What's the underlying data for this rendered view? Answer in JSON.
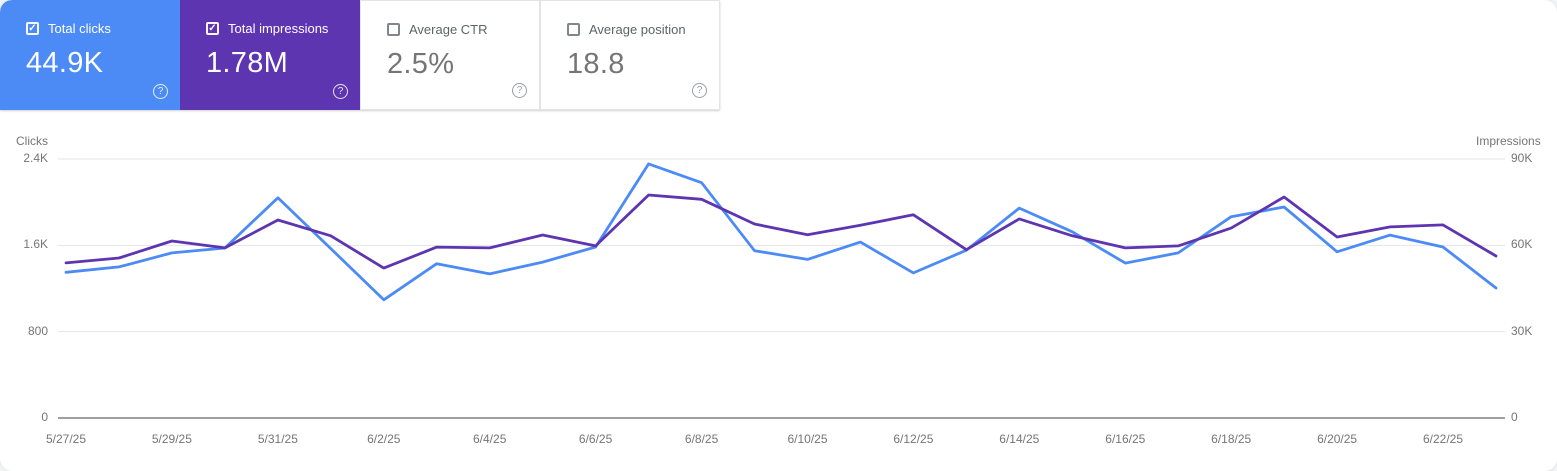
{
  "icons": {
    "help": "?",
    "checkmark": "✓"
  },
  "cards": [
    {
      "label": "Total clicks",
      "value": "44.9K",
      "checked": true,
      "bg": "#4c8bf5"
    },
    {
      "label": "Total impressions",
      "value": "1.78M",
      "checked": true,
      "bg": "#5e35b1"
    },
    {
      "label": "Average CTR",
      "value": "2.5%",
      "checked": false,
      "bg": "#ffffff"
    },
    {
      "label": "Average position",
      "value": "18.8",
      "checked": false,
      "bg": "#ffffff"
    }
  ],
  "chart_data": {
    "type": "line",
    "x": [
      "5/27/25",
      "5/28/25",
      "5/29/25",
      "5/30/25",
      "5/31/25",
      "6/1/25",
      "6/2/25",
      "6/3/25",
      "6/4/25",
      "6/5/25",
      "6/6/25",
      "6/7/25",
      "6/8/25",
      "6/9/25",
      "6/10/25",
      "6/11/25",
      "6/12/25",
      "6/13/25",
      "6/14/25",
      "6/15/25",
      "6/16/25",
      "6/17/25",
      "6/18/25",
      "6/19/25",
      "6/20/25",
      "6/21/25",
      "6/22/25",
      "6/23/25"
    ],
    "x_tick_labels": [
      "5/27/25",
      "5/29/25",
      "5/31/25",
      "6/2/25",
      "6/4/25",
      "6/6/25",
      "6/8/25",
      "6/10/25",
      "6/12/25",
      "6/14/25",
      "6/16/25",
      "6/18/25",
      "6/20/25",
      "6/22/25"
    ],
    "series": [
      {
        "name": "Total clicks",
        "axis": "left",
        "color": "#4c8bf5",
        "values": [
          1350,
          1400,
          1530,
          1575,
          2040,
          1570,
          1095,
          1430,
          1335,
          1445,
          1585,
          2355,
          2180,
          1550,
          1470,
          1630,
          1345,
          1555,
          1945,
          1725,
          1435,
          1530,
          1865,
          1955,
          1540,
          1695,
          1585,
          1205
        ]
      },
      {
        "name": "Total impressions",
        "axis": "right",
        "color": "#5e35b1",
        "values": [
          53900,
          55600,
          61500,
          59100,
          68800,
          63300,
          52100,
          59400,
          59100,
          63600,
          59800,
          77500,
          76000,
          67400,
          63700,
          67000,
          70600,
          58500,
          69200,
          63300,
          59100,
          59800,
          66000,
          76800,
          62900,
          66400,
          67100,
          56300
        ]
      }
    ],
    "left_axis": {
      "title": "Clicks",
      "ticks": [
        "2.4K",
        "1.6K",
        "800",
        "0"
      ],
      "range": [
        0,
        2400
      ]
    },
    "right_axis": {
      "title": "Impressions",
      "ticks": [
        "90K",
        "60K",
        "30K",
        "0"
      ],
      "range": [
        0,
        90000
      ]
    },
    "grid": "horizontal",
    "legend": "none",
    "grid_color": "#e4e4e4",
    "baseline_color": "#9aa0a6"
  }
}
